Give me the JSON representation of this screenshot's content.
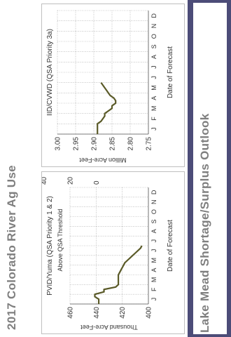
{
  "page": {
    "title": "2017 Colorado River Ag Use",
    "footer_title": "Lake Mead Shortage/Surplus Outlook",
    "accent_color": "#4c4c78",
    "line_color": "#5a5a28",
    "title_color": "#7f7f7f"
  },
  "chart_data": [
    {
      "type": "line",
      "title": "PVID/Yuma (QSA Priority 1 & 2)",
      "ylabel": "Thousand Acre-Feet",
      "xlabel": "Date of Forecast",
      "ylim": [
        400,
        460
      ],
      "yticks": [
        "400",
        "420",
        "440",
        "460"
      ],
      "secondary_axis": {
        "label": "Above QSA Threshold",
        "range": [
          -40,
          20
        ],
        "ticks": [
          "0",
          "20",
          "40"
        ]
      },
      "categories": [
        "J",
        "F",
        "M",
        "A",
        "M",
        "J",
        "J",
        "A",
        "S",
        "O",
        "N",
        "D"
      ],
      "series": [
        {
          "x": [
            0.0,
            0.25,
            0.5,
            0.75,
            1.0,
            1.25,
            1.5,
            1.75,
            2.0,
            2.25,
            2.5,
            2.75,
            3.0,
            3.25,
            3.5,
            3.75,
            4.0,
            4.25,
            4.5,
            4.75,
            5.0,
            5.25,
            5.5,
            5.75,
            6.0
          ],
          "y": [
            438,
            438,
            438,
            441,
            441,
            434,
            434,
            425,
            423,
            423,
            423,
            423,
            423,
            422,
            421,
            420,
            419,
            418,
            416,
            414,
            412,
            410,
            408,
            406,
            405
          ]
        }
      ]
    },
    {
      "type": "line",
      "title": "IID/CVWD (QSA Priority 3a)",
      "ylabel": "Million Acre-Feet",
      "xlabel": "Date of Forecast",
      "ylim": [
        2.75,
        3.0
      ],
      "yticks": [
        "2.75",
        "2.80",
        "2.85",
        "2.90",
        "2.95",
        "3.00"
      ],
      "categories": [
        "J",
        "F",
        "M",
        "A",
        "M",
        "J",
        "J",
        "A",
        "S",
        "O",
        "N",
        "D"
      ],
      "series": [
        {
          "x": [
            0.0,
            0.25,
            0.5,
            0.75,
            1.0,
            1.25,
            1.5,
            1.75,
            2.0,
            2.25,
            2.5,
            2.75,
            3.0,
            3.25,
            3.5,
            3.75,
            4.0,
            4.25,
            4.5,
            4.75,
            5.0
          ],
          "y": [
            2.89,
            2.89,
            2.89,
            2.89,
            2.89,
            2.88,
            2.875,
            2.87,
            2.87,
            2.86,
            2.85,
            2.85,
            2.84,
            2.84,
            2.845,
            2.855,
            2.86,
            2.865,
            2.87,
            2.875,
            2.88
          ]
        }
      ]
    }
  ]
}
